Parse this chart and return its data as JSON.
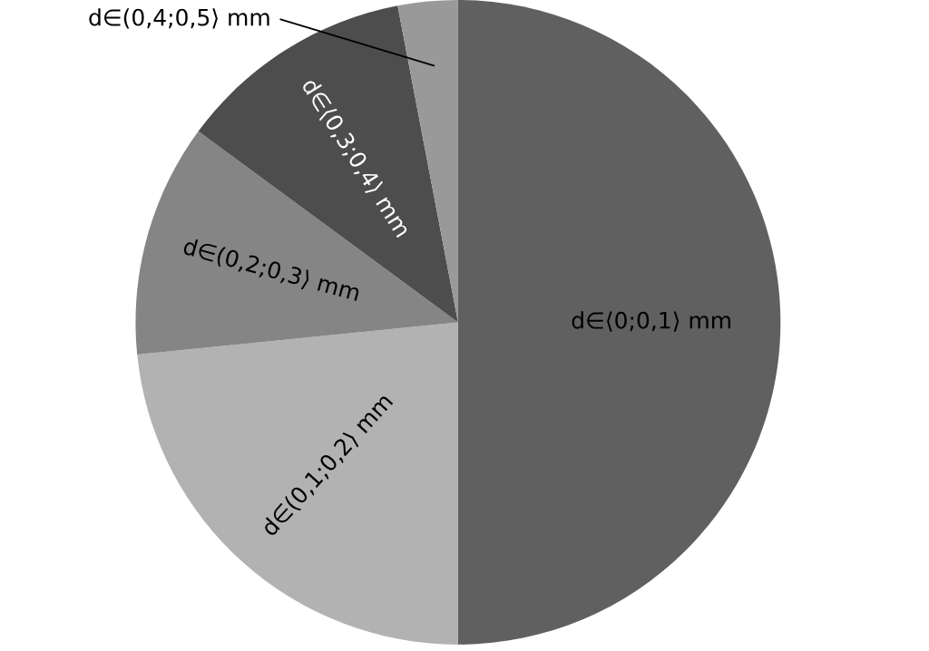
{
  "chart_data": {
    "type": "pie",
    "categories": [
      "d∈⟨0;0,1⟩ mm",
      "d∈(0,1;0,2⟩ mm",
      "d∈(0,2;0,3⟩ mm",
      "d∈⟨0,3;0,4⟩ mm",
      "d∈(0,4;0,5⟩ mm"
    ],
    "values": [
      50,
      23.4,
      11.7,
      11.9,
      3.0
    ],
    "colors": [
      "#606060",
      "#b2b2b2",
      "#858585",
      "#4d4d4d",
      "#999999"
    ],
    "legend": false
  }
}
